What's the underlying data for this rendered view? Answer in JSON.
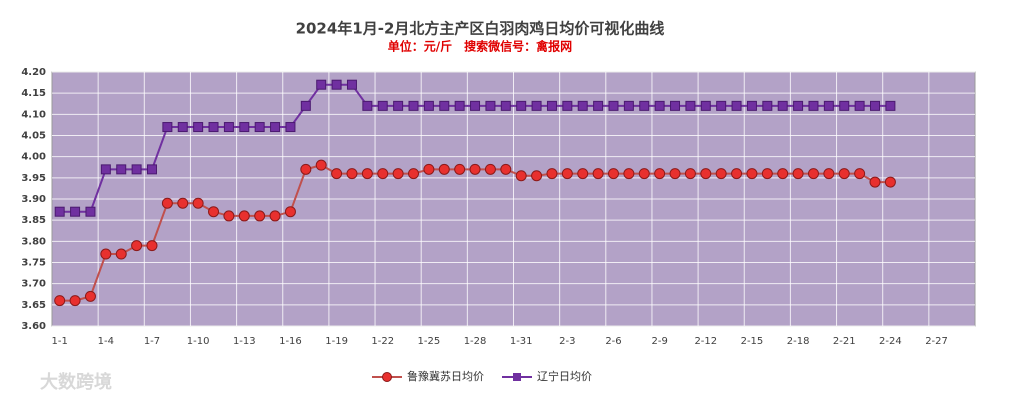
{
  "chart_data": {
    "type": "line",
    "title": "2024年1月-2月北方主产区白羽肉鸡日均价可视化曲线",
    "subtitle": "单位：元/斤　搜索微信号：禽报网",
    "watermark": "大数跨境",
    "categories": [
      "1-1",
      null,
      null,
      "1-4",
      null,
      null,
      "1-7",
      null,
      null,
      "1-10",
      null,
      null,
      "1-13",
      null,
      null,
      "1-16",
      null,
      null,
      "1-19",
      null,
      null,
      "1-22",
      null,
      null,
      "1-25",
      null,
      null,
      "1-28",
      null,
      null,
      "1-31",
      null,
      null,
      "2-3",
      null,
      null,
      "2-6",
      null,
      null,
      "2-9",
      null,
      null,
      "2-12",
      null,
      null,
      "2-15",
      null,
      null,
      "2-18",
      null,
      null,
      "2-21",
      null,
      null,
      "2-24",
      null,
      null,
      "2-27",
      null,
      null
    ],
    "series": [
      {
        "name": "鲁豫冀苏日均价",
        "color": "#c0504d",
        "marker_color": "#e8302e",
        "values": [
          3.66,
          3.66,
          3.67,
          3.77,
          3.77,
          3.79,
          3.79,
          3.89,
          3.89,
          3.89,
          3.87,
          3.86,
          3.86,
          3.86,
          3.86,
          3.87,
          3.97,
          3.98,
          3.96,
          3.96,
          3.96,
          3.96,
          3.96,
          3.96,
          3.97,
          3.97,
          3.97,
          3.97,
          3.97,
          3.97,
          3.955,
          3.955,
          3.96,
          3.96,
          3.96,
          3.96,
          3.96,
          3.96,
          3.96,
          3.96,
          3.96,
          3.96,
          3.96,
          3.96,
          3.96,
          3.96,
          3.96,
          3.96,
          3.96,
          3.96,
          3.96,
          3.96,
          3.96,
          3.94,
          3.94,
          null,
          null,
          null,
          null,
          null
        ]
      },
      {
        "name": "辽宁日均价",
        "color": "#7030a0",
        "marker_color": "#7030a0",
        "values": [
          3.87,
          3.87,
          3.87,
          3.97,
          3.97,
          3.97,
          3.97,
          4.07,
          4.07,
          4.07,
          4.07,
          4.07,
          4.07,
          4.07,
          4.07,
          4.07,
          4.12,
          4.17,
          4.17,
          4.17,
          4.12,
          4.12,
          4.12,
          4.12,
          4.12,
          4.12,
          4.12,
          4.12,
          4.12,
          4.12,
          4.12,
          4.12,
          4.12,
          4.12,
          4.12,
          4.12,
          4.12,
          4.12,
          4.12,
          4.12,
          4.12,
          4.12,
          4.12,
          4.12,
          4.12,
          4.12,
          4.12,
          4.12,
          4.12,
          4.12,
          4.12,
          4.12,
          4.12,
          4.12,
          4.12,
          null,
          null,
          null,
          null,
          null
        ]
      }
    ],
    "ylim": [
      3.6,
      4.2
    ],
    "yticks": [
      {
        "value": 3.6,
        "label": "3.60"
      },
      {
        "value": 3.65,
        "label": "3.65"
      },
      {
        "value": 3.7,
        "label": "3.70"
      },
      {
        "value": 3.75,
        "label": "3.75"
      },
      {
        "value": 3.8,
        "label": "3.80"
      },
      {
        "value": 3.85,
        "label": "3.85"
      },
      {
        "value": 3.9,
        "label": "3.90"
      },
      {
        "value": 3.95,
        "label": "3.95"
      },
      {
        "value": 4.0,
        "label": "4.00"
      },
      {
        "value": 4.05,
        "label": "4.05"
      },
      {
        "value": 4.1,
        "label": "4.10"
      },
      {
        "value": 4.15,
        "label": "4.15"
      },
      {
        "value": 4.2,
        "label": "4.20"
      }
    ],
    "grid": true,
    "plot_background": "#b3a2c7",
    "legend": "bottom"
  }
}
